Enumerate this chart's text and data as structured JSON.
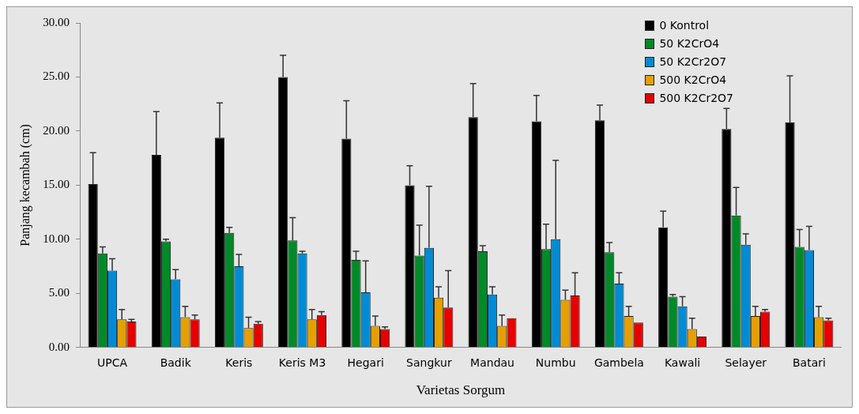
{
  "chart_data": {
    "type": "bar",
    "xlabel": "Varietas Sorgum",
    "ylabel": "Panjang kecambah (cm)",
    "categories": [
      "UPCA",
      "Badik",
      "Keris",
      "Keris M3",
      "Hegari",
      "Sangkur",
      "Mandau",
      "Numbu",
      "Gambela",
      "Kawali",
      "Selayer",
      "Batari"
    ],
    "ylim": [
      0,
      30
    ],
    "yticks": [
      {
        "value": 0,
        "label": "0.00"
      },
      {
        "value": 5,
        "label": "5.00"
      },
      {
        "value": 10,
        "label": "10.00"
      },
      {
        "value": 15,
        "label": "15.00"
      },
      {
        "value": 20,
        "label": "20.00"
      },
      {
        "value": 25,
        "label": "25.00"
      },
      {
        "value": 30,
        "label": "30.00"
      }
    ],
    "grid": false,
    "legend": "top right",
    "series": [
      {
        "name": "0 Kontrol",
        "color": "#000000",
        "values": [
          15.1,
          17.8,
          19.4,
          25.0,
          19.3,
          15.0,
          21.3,
          20.9,
          21.0,
          11.1,
          20.2,
          20.8
        ],
        "errors": [
          [
            15.1,
            18.0
          ],
          [
            17.8,
            21.8
          ],
          [
            19.4,
            22.6
          ],
          [
            25.0,
            27.0
          ],
          [
            19.3,
            22.8
          ],
          [
            15.0,
            16.8
          ],
          [
            21.3,
            24.4
          ],
          [
            20.9,
            23.3
          ],
          [
            21.0,
            22.4
          ],
          [
            11.1,
            12.6
          ],
          [
            20.2,
            22.1
          ],
          [
            20.8,
            25.1
          ]
        ]
      },
      {
        "name": "50 K2CrO4",
        "color": "#008a28",
        "values": [
          8.7,
          9.8,
          10.6,
          9.9,
          8.1,
          8.5,
          8.9,
          9.1,
          8.8,
          4.7,
          12.2,
          9.3
        ],
        "errors": [
          [
            8.7,
            9.3
          ],
          [
            9.8,
            10.0
          ],
          [
            10.6,
            11.1
          ],
          [
            9.9,
            12.0
          ],
          [
            8.1,
            8.9
          ],
          [
            8.5,
            11.3
          ],
          [
            8.9,
            9.4
          ],
          [
            9.1,
            11.4
          ],
          [
            8.8,
            9.7
          ],
          [
            4.7,
            4.9
          ],
          [
            12.2,
            14.8
          ],
          [
            9.3,
            10.9
          ]
        ]
      },
      {
        "name": "50 K2Cr2O7",
        "color": "#008bd4",
        "values": [
          7.1,
          6.3,
          7.5,
          8.7,
          5.1,
          9.2,
          4.9,
          10.0,
          5.9,
          3.8,
          9.5,
          9.0
        ],
        "errors": [
          [
            7.1,
            8.2
          ],
          [
            6.3,
            7.2
          ],
          [
            7.5,
            8.6
          ],
          [
            8.7,
            8.9
          ],
          [
            5.1,
            8.0
          ],
          [
            9.2,
            14.9
          ],
          [
            4.9,
            5.6
          ],
          [
            10.0,
            17.3
          ],
          [
            5.9,
            6.9
          ],
          [
            3.8,
            4.7
          ],
          [
            9.5,
            10.5
          ],
          [
            9.0,
            11.2
          ]
        ]
      },
      {
        "name": "500 K2CrO4",
        "color": "#e5a000",
        "values": [
          2.6,
          2.8,
          1.8,
          2.6,
          2.0,
          4.6,
          2.0,
          4.4,
          2.9,
          1.7,
          2.9,
          2.8
        ],
        "errors": [
          [
            2.6,
            3.5
          ],
          [
            2.8,
            3.8
          ],
          [
            1.8,
            2.8
          ],
          [
            2.6,
            3.5
          ],
          [
            2.0,
            2.9
          ],
          [
            4.6,
            5.6
          ],
          [
            2.0,
            3.0
          ],
          [
            4.4,
            5.3
          ],
          [
            2.9,
            3.8
          ],
          [
            1.7,
            2.7
          ],
          [
            2.9,
            3.8
          ],
          [
            2.8,
            3.8
          ]
        ]
      },
      {
        "name": "500 K2Cr2O7",
        "color": "#e60000",
        "values": [
          2.4,
          2.6,
          2.2,
          3.0,
          1.7,
          3.7,
          2.7,
          4.8,
          2.3,
          1.0,
          3.3,
          2.5
        ],
        "errors": [
          [
            2.4,
            2.6
          ],
          [
            2.6,
            3.0
          ],
          [
            2.2,
            2.4
          ],
          [
            3.0,
            3.3
          ],
          [
            1.7,
            1.9
          ],
          [
            3.7,
            7.1
          ],
          null,
          [
            4.8,
            6.9
          ],
          null,
          null,
          [
            3.3,
            3.5
          ],
          [
            2.5,
            2.7
          ]
        ]
      }
    ]
  }
}
